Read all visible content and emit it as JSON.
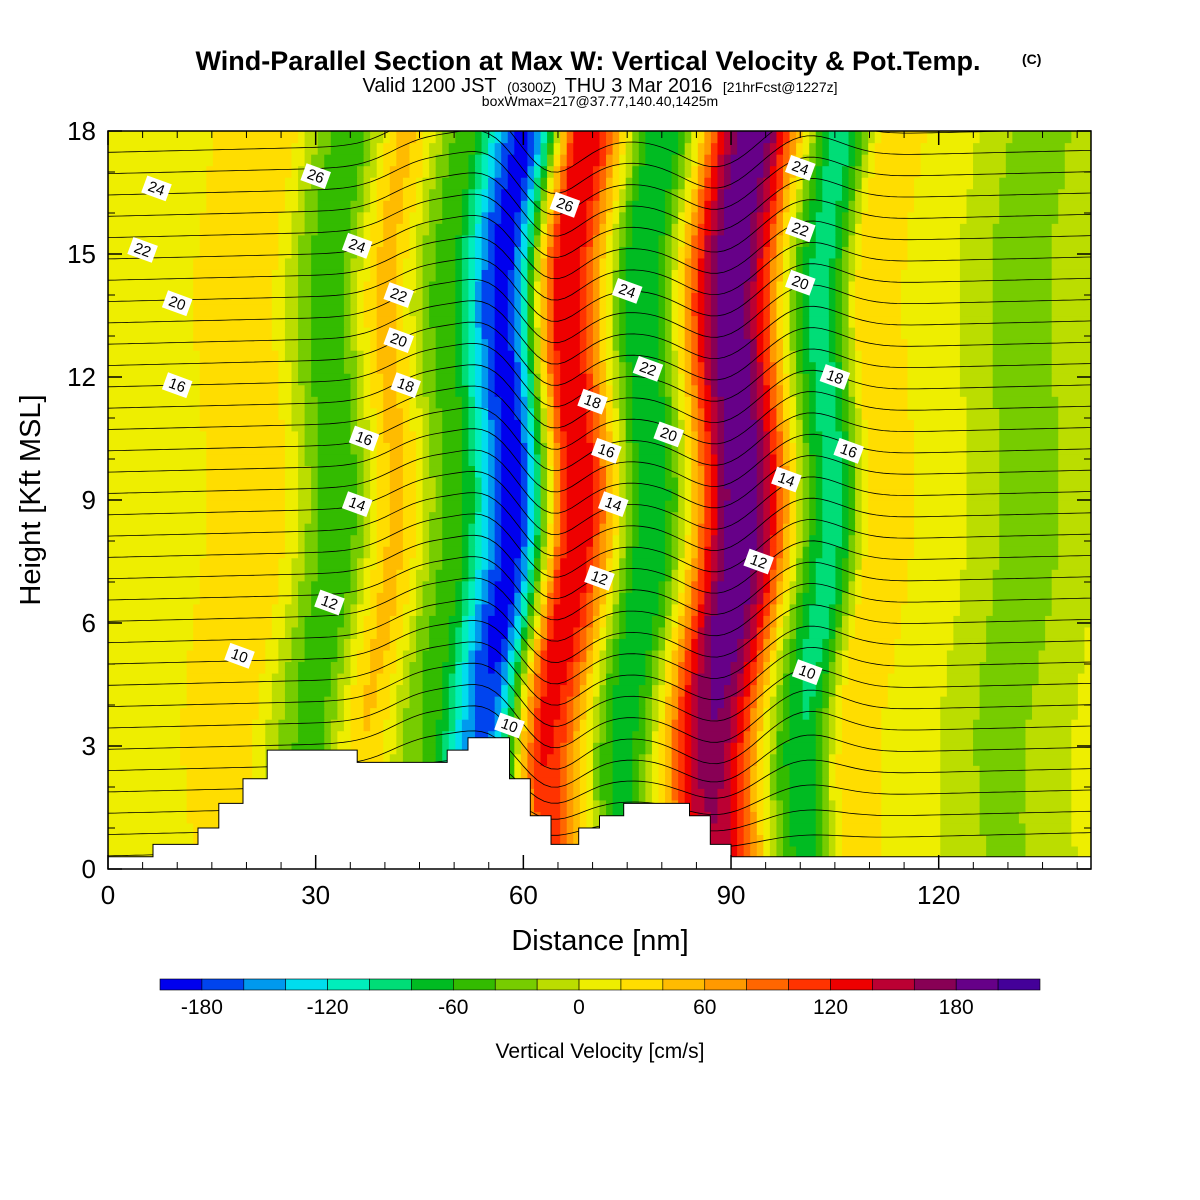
{
  "chart_data": {
    "type": "heatmap",
    "title": "Wind-Parallel Section at Max W: Vertical Velocity & Pot.Temp.",
    "title_mark": "(C)",
    "subtitle_parts": [
      "Valid 1200 JST",
      "(0300Z)",
      "THU 3 Mar 2016",
      "[21hrFcst@1227z]"
    ],
    "subtitle2": "boxWmax=217@37.77,140.40,1425m",
    "xlabel": "Distance [nm]",
    "ylabel": "Height [Kft MSL]",
    "xlim": [
      0,
      142
    ],
    "ylim": [
      0,
      18
    ],
    "x_ticks": [
      "0",
      "30",
      "60",
      "90",
      "120"
    ],
    "x_tick_values": [
      0,
      30,
      60,
      90,
      120
    ],
    "y_ticks": [
      "0",
      "3",
      "6",
      "9",
      "12",
      "15",
      "18"
    ],
    "y_tick_values": [
      0,
      3,
      6,
      9,
      12,
      15,
      18
    ],
    "colorbar": {
      "title": "Vertical Velocity [cm/s]",
      "levels": [
        -200,
        -180,
        -160,
        -140,
        -120,
        -100,
        -80,
        -60,
        -40,
        -20,
        0,
        20,
        40,
        60,
        80,
        100,
        120,
        140,
        160,
        180,
        200,
        220
      ],
      "colors": [
        "#0000ee",
        "#0044ee",
        "#0099ee",
        "#00ddee",
        "#00eebb",
        "#00dd77",
        "#00bb22",
        "#33bb00",
        "#77cc00",
        "#bbdd00",
        "#eeee00",
        "#ffdd00",
        "#ffbb00",
        "#ff9900",
        "#ff6600",
        "#ff3300",
        "#ee0000",
        "#bb0033",
        "#880055",
        "#660088",
        "#440099"
      ],
      "labels": [
        "-180",
        "-120",
        "-60",
        "0",
        "60",
        "120",
        "180"
      ],
      "label_values": [
        -180,
        -120,
        -60,
        0,
        60,
        120,
        180
      ]
    },
    "vertical_velocity_bands": [
      {
        "x": 2,
        "peak": 5
      },
      {
        "x": 19,
        "peak": 35
      },
      {
        "x": 30,
        "peak": -55
      },
      {
        "x": 38,
        "peak": 45
      },
      {
        "x": 46,
        "peak": -45
      },
      {
        "x": 55,
        "peak": -190
      },
      {
        "x": 64,
        "peak": 140
      },
      {
        "x": 75,
        "peak": -80
      },
      {
        "x": 88,
        "peak": 200
      },
      {
        "x": 101,
        "peak": -90
      },
      {
        "x": 108,
        "peak": 40
      },
      {
        "x": 116,
        "peak": 10
      },
      {
        "x": 130,
        "peak": -30
      },
      {
        "x": 140,
        "peak": 0
      }
    ],
    "theta_contour_labels": [
      {
        "text": "24",
        "x": 7,
        "y": 16.6
      },
      {
        "text": "22",
        "x": 5,
        "y": 15.1
      },
      {
        "text": "20",
        "x": 10,
        "y": 13.8
      },
      {
        "text": "16",
        "x": 10,
        "y": 11.8
      },
      {
        "text": "10",
        "x": 19,
        "y": 5.2
      },
      {
        "text": "12",
        "x": 32,
        "y": 6.5
      },
      {
        "text": "14",
        "x": 36,
        "y": 8.9
      },
      {
        "text": "16",
        "x": 37,
        "y": 10.5
      },
      {
        "text": "18",
        "x": 43,
        "y": 11.8
      },
      {
        "text": "20",
        "x": 42,
        "y": 12.9
      },
      {
        "text": "22",
        "x": 42,
        "y": 14.0
      },
      {
        "text": "24",
        "x": 36,
        "y": 15.2
      },
      {
        "text": "26",
        "x": 30,
        "y": 16.9
      },
      {
        "text": "26",
        "x": 66,
        "y": 16.2
      },
      {
        "text": "24",
        "x": 75,
        "y": 14.1
      },
      {
        "text": "22",
        "x": 78,
        "y": 12.2
      },
      {
        "text": "20",
        "x": 81,
        "y": 10.6
      },
      {
        "text": "18",
        "x": 70,
        "y": 11.4
      },
      {
        "text": "16",
        "x": 72,
        "y": 10.2
      },
      {
        "text": "14",
        "x": 73,
        "y": 8.9
      },
      {
        "text": "12",
        "x": 71,
        "y": 7.1
      },
      {
        "text": "10",
        "x": 58,
        "y": 3.5
      },
      {
        "text": "24",
        "x": 100,
        "y": 17.1
      },
      {
        "text": "22",
        "x": 100,
        "y": 15.6
      },
      {
        "text": "20",
        "x": 100,
        "y": 14.3
      },
      {
        "text": "18",
        "x": 105,
        "y": 12.0
      },
      {
        "text": "16",
        "x": 107,
        "y": 10.2
      },
      {
        "text": "14",
        "x": 98,
        "y": 9.5
      },
      {
        "text": "12",
        "x": 94,
        "y": 7.5
      },
      {
        "text": "10",
        "x": 101,
        "y": 4.8
      }
    ],
    "terrain_kft": [
      {
        "x": 0,
        "h": 0.3
      },
      {
        "x": 6.5,
        "h": 0.3
      },
      {
        "x": 6.5,
        "h": 0.6
      },
      {
        "x": 13,
        "h": 0.6
      },
      {
        "x": 13,
        "h": 1.0
      },
      {
        "x": 16,
        "h": 1.0
      },
      {
        "x": 16,
        "h": 1.6
      },
      {
        "x": 19.5,
        "h": 1.6
      },
      {
        "x": 19.5,
        "h": 2.2
      },
      {
        "x": 23,
        "h": 2.2
      },
      {
        "x": 23,
        "h": 2.9
      },
      {
        "x": 36,
        "h": 2.9
      },
      {
        "x": 36,
        "h": 2.6
      },
      {
        "x": 49,
        "h": 2.6
      },
      {
        "x": 49,
        "h": 2.9
      },
      {
        "x": 52,
        "h": 2.9
      },
      {
        "x": 52,
        "h": 3.2
      },
      {
        "x": 58,
        "h": 3.2
      },
      {
        "x": 58,
        "h": 2.2
      },
      {
        "x": 61,
        "h": 2.2
      },
      {
        "x": 61,
        "h": 1.3
      },
      {
        "x": 64,
        "h": 1.3
      },
      {
        "x": 64,
        "h": 0.6
      },
      {
        "x": 68,
        "h": 0.6
      },
      {
        "x": 68,
        "h": 1.0
      },
      {
        "x": 71,
        "h": 1.0
      },
      {
        "x": 71,
        "h": 1.3
      },
      {
        "x": 74.5,
        "h": 1.3
      },
      {
        "x": 74.5,
        "h": 1.6
      },
      {
        "x": 84,
        "h": 1.6
      },
      {
        "x": 84,
        "h": 1.3
      },
      {
        "x": 87,
        "h": 1.3
      },
      {
        "x": 87,
        "h": 0.6
      },
      {
        "x": 90,
        "h": 0.6
      },
      {
        "x": 90,
        "h": 0.3
      },
      {
        "x": 142,
        "h": 0.3
      }
    ]
  }
}
